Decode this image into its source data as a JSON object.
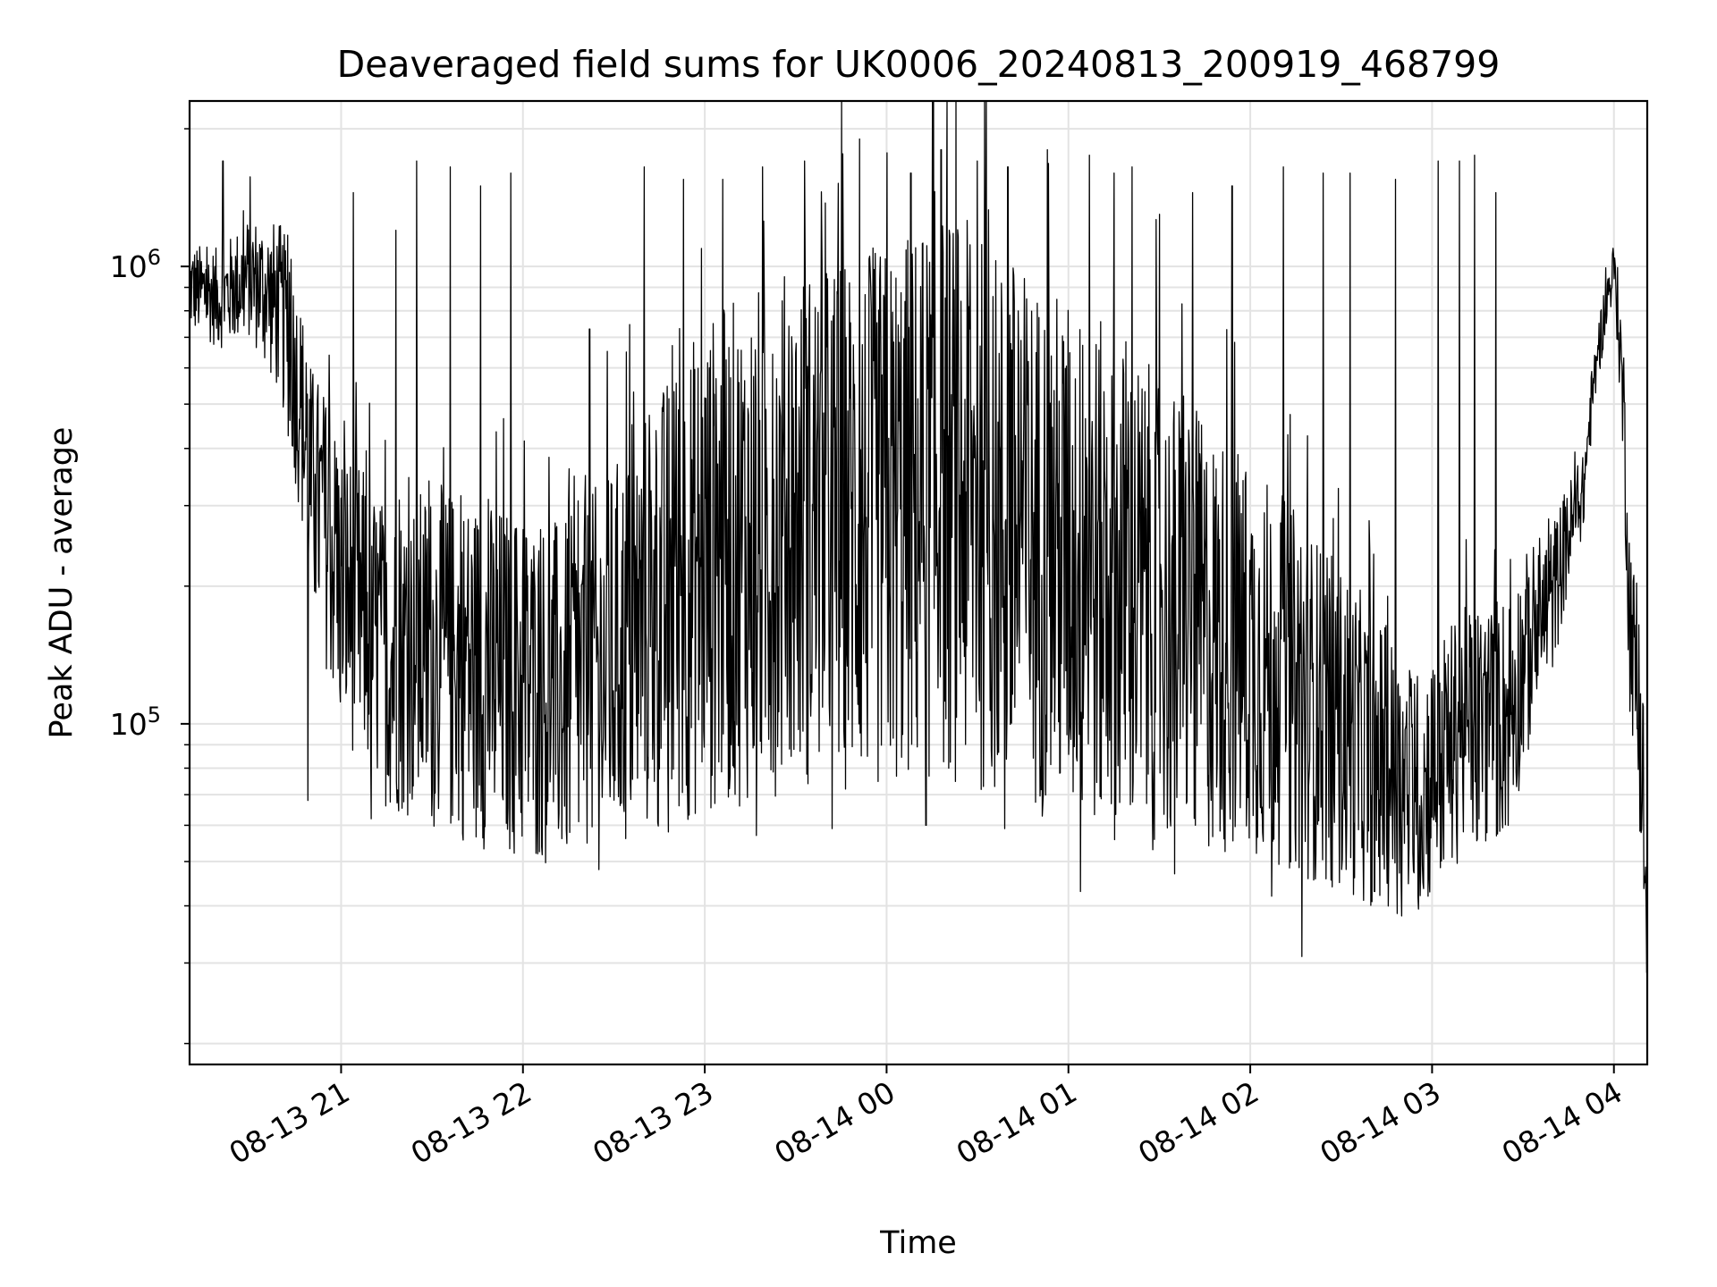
{
  "chart_data": {
    "type": "line",
    "title": "Deaveraged field sums for UK0006_20240813_200919_468799",
    "xlabel": "Time",
    "ylabel": "Peak ADU - average",
    "yscale": "log",
    "xlim": [
      "2024-08-13 20:10",
      "2024-08-14 04:11"
    ],
    "ylim": [
      18000,
      2300000
    ],
    "grid": true,
    "line_color": "#000000",
    "x_ticks": [
      {
        "value": "2024-08-13 21:00",
        "label": "08-13 21"
      },
      {
        "value": "2024-08-13 22:00",
        "label": "08-13 22"
      },
      {
        "value": "2024-08-13 23:00",
        "label": "08-13 23"
      },
      {
        "value": "2024-08-14 00:00",
        "label": "08-14 00"
      },
      {
        "value": "2024-08-14 01:00",
        "label": "08-14 01"
      },
      {
        "value": "2024-08-14 02:00",
        "label": "08-14 02"
      },
      {
        "value": "2024-08-14 03:00",
        "label": "08-14 03"
      },
      {
        "value": "2024-08-14 04:00",
        "label": "08-14 04"
      }
    ],
    "y_ticks": [
      {
        "value": 100000,
        "base": "10",
        "exp": "5"
      },
      {
        "value": 1000000,
        "base": "10",
        "exp": "6"
      }
    ],
    "series": [
      {
        "x": [
          "2024-08-13 20:10",
          "2024-08-13 20:20",
          "2024-08-13 20:30",
          "2024-08-13 20:40",
          "2024-08-13 20:50",
          "2024-08-13 21:00",
          "2024-08-13 21:15",
          "2024-08-13 21:30",
          "2024-08-13 21:45",
          "2024-08-13 22:00",
          "2024-08-13 22:15",
          "2024-08-13 22:30",
          "2024-08-13 22:45",
          "2024-08-13 23:00",
          "2024-08-13 23:30",
          "2024-08-14 00:00",
          "2024-08-14 00:20",
          "2024-08-14 00:40",
          "2024-08-14 01:00",
          "2024-08-14 01:20",
          "2024-08-14 01:40",
          "2024-08-14 02:00",
          "2024-08-14 02:20",
          "2024-08-14 02:40",
          "2024-08-14 02:55",
          "2024-08-14 03:10",
          "2024-08-14 03:25",
          "2024-08-14 03:40",
          "2024-08-14 03:50",
          "2024-08-14 04:00",
          "2024-08-14 04:05",
          "2024-08-14 04:11"
        ],
        "center": [
          900000,
          850000,
          950000,
          800000,
          330000,
          200000,
          140000,
          140000,
          130000,
          120000,
          115000,
          135000,
          175000,
          220000,
          270000,
          280000,
          320000,
          260000,
          230000,
          190000,
          160000,
          140000,
          110000,
          85000,
          70000,
          95000,
          105000,
          190000,
          320000,
          1000000,
          180000,
          28000
        ],
        "spread": [
          0.18,
          0.2,
          0.25,
          0.35,
          0.5,
          0.6,
          0.6,
          0.7,
          0.7,
          0.7,
          0.7,
          0.8,
          0.9,
          1.0,
          1.05,
          1.1,
          1.15,
          1.1,
          1.05,
          1.0,
          0.9,
          0.8,
          0.7,
          0.6,
          0.5,
          0.5,
          0.5,
          0.3,
          0.15,
          0.1,
          0.4,
          0.3
        ],
        "spikes": [
          {
            "x": "2024-08-13 20:21",
            "y": 1700000
          },
          {
            "x": "2024-08-13 20:43",
            "y": 970000
          },
          {
            "x": "2024-08-13 21:04",
            "y": 1450000
          },
          {
            "x": "2024-08-13 21:18",
            "y": 1200000
          },
          {
            "x": "2024-08-13 21:25",
            "y": 1700000
          },
          {
            "x": "2024-08-13 21:36",
            "y": 1650000
          },
          {
            "x": "2024-08-13 21:46",
            "y": 1500000
          },
          {
            "x": "2024-08-13 21:56",
            "y": 1600000
          },
          {
            "x": "2024-08-13 22:22",
            "y": 730000
          },
          {
            "x": "2024-08-13 22:40",
            "y": 1650000
          },
          {
            "x": "2024-08-13 22:53",
            "y": 1550000
          },
          {
            "x": "2024-08-13 23:06",
            "y": 1550000
          },
          {
            "x": "2024-08-13 23:19",
            "y": 1650000
          },
          {
            "x": "2024-08-13 23:33",
            "y": 1700000
          },
          {
            "x": "2024-08-13 23:44",
            "y": 1520000
          },
          {
            "x": "2024-08-13 23:51",
            "y": 1900000
          },
          {
            "x": "2024-08-14 00:08",
            "y": 1600000
          },
          {
            "x": "2024-08-14 00:18",
            "y": 1800000
          },
          {
            "x": "2024-08-14 00:30",
            "y": 1700000
          },
          {
            "x": "2024-08-14 00:40",
            "y": 1650000
          },
          {
            "x": "2024-08-14 00:53",
            "y": 1800000
          },
          {
            "x": "2024-08-14 01:07",
            "y": 1750000
          },
          {
            "x": "2024-08-14 01:15",
            "y": 1600000
          },
          {
            "x": "2024-08-14 01:21",
            "y": 1650000
          },
          {
            "x": "2024-08-14 01:30",
            "y": 1300000
          },
          {
            "x": "2024-08-14 01:41",
            "y": 1450000
          },
          {
            "x": "2024-08-14 01:54",
            "y": 1500000
          },
          {
            "x": "2024-08-14 02:11",
            "y": 1650000
          },
          {
            "x": "2024-08-14 02:24",
            "y": 1600000
          },
          {
            "x": "2024-08-14 02:33",
            "y": 1600000
          },
          {
            "x": "2024-08-14 02:48",
            "y": 1550000
          },
          {
            "x": "2024-08-14 03:02",
            "y": 1700000
          },
          {
            "x": "2024-08-14 03:09",
            "y": 1700000
          },
          {
            "x": "2024-08-14 03:14",
            "y": 1750000
          },
          {
            "x": "2024-08-14 03:21",
            "y": 1450000
          }
        ],
        "dips": [
          {
            "x": "2024-08-13 20:49",
            "y": 68000
          },
          {
            "x": "2024-08-13 21:10",
            "y": 62000
          },
          {
            "x": "2024-08-13 21:30",
            "y": 63000
          },
          {
            "x": "2024-08-13 22:25",
            "y": 48000
          },
          {
            "x": "2024-08-13 22:48",
            "y": 58000
          },
          {
            "x": "2024-08-13 23:17",
            "y": 57000
          },
          {
            "x": "2024-08-13 23:42",
            "y": 59000
          },
          {
            "x": "2024-08-14 00:13",
            "y": 60000
          },
          {
            "x": "2024-08-14 00:39",
            "y": 59000
          },
          {
            "x": "2024-08-14 01:04",
            "y": 43000
          },
          {
            "x": "2024-08-14 01:35",
            "y": 47000
          },
          {
            "x": "2024-08-14 02:07",
            "y": 42000
          },
          {
            "x": "2024-08-14 02:17",
            "y": 31000
          },
          {
            "x": "2024-08-14 02:27",
            "y": 44000
          },
          {
            "x": "2024-08-14 02:41",
            "y": 43000
          },
          {
            "x": "2024-08-14 02:50",
            "y": 38000
          },
          {
            "x": "2024-08-14 02:57",
            "y": 45000
          },
          {
            "x": "2024-08-14 03:15",
            "y": 56000
          }
        ]
      }
    ]
  }
}
